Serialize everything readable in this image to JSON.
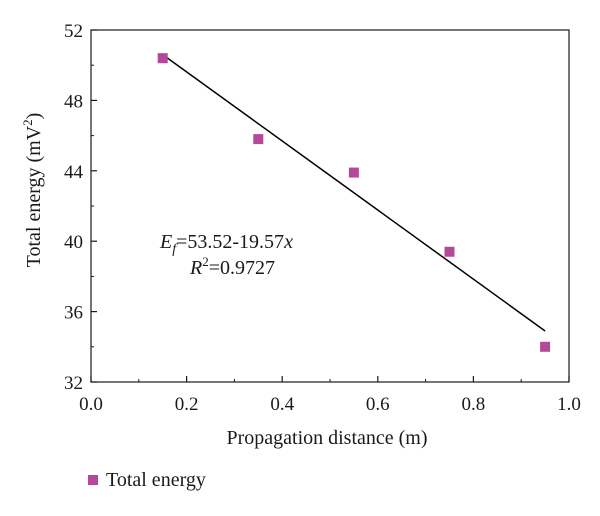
{
  "chart_data": {
    "type": "scatter",
    "xlabel": "Propagation distance (m)",
    "ylabel_main": "Total energy (mV",
    "ylabel_sup": "2",
    "ylabel_end": ")",
    "xlim": [
      0.0,
      1.0
    ],
    "ylim": [
      32,
      52
    ],
    "xticks": [
      "0.0",
      "0.2",
      "0.4",
      "0.6",
      "0.8",
      "1.0"
    ],
    "yticks": [
      "32",
      "36",
      "40",
      "44",
      "48",
      "52"
    ],
    "series": [
      {
        "name": "Total energy",
        "color": "#b5489a",
        "marker": "square",
        "x": [
          0.15,
          0.35,
          0.55,
          0.75,
          0.95
        ],
        "y": [
          50.4,
          45.8,
          43.9,
          39.4,
          34.0
        ]
      }
    ],
    "fit_line": {
      "color": "#000000",
      "x": [
        0.15,
        0.95
      ],
      "y": [
        50.6,
        34.9
      ]
    },
    "annotation": {
      "eq_var": "E",
      "eq_sub": "f",
      "eq_body": "=53.52-19.57",
      "eq_x": "x",
      "r2_prefix": "R",
      "r2_sup": "2",
      "r2_value": "=0.9727"
    },
    "legend": {
      "position": "bottom-left",
      "label": "Total energy"
    }
  }
}
